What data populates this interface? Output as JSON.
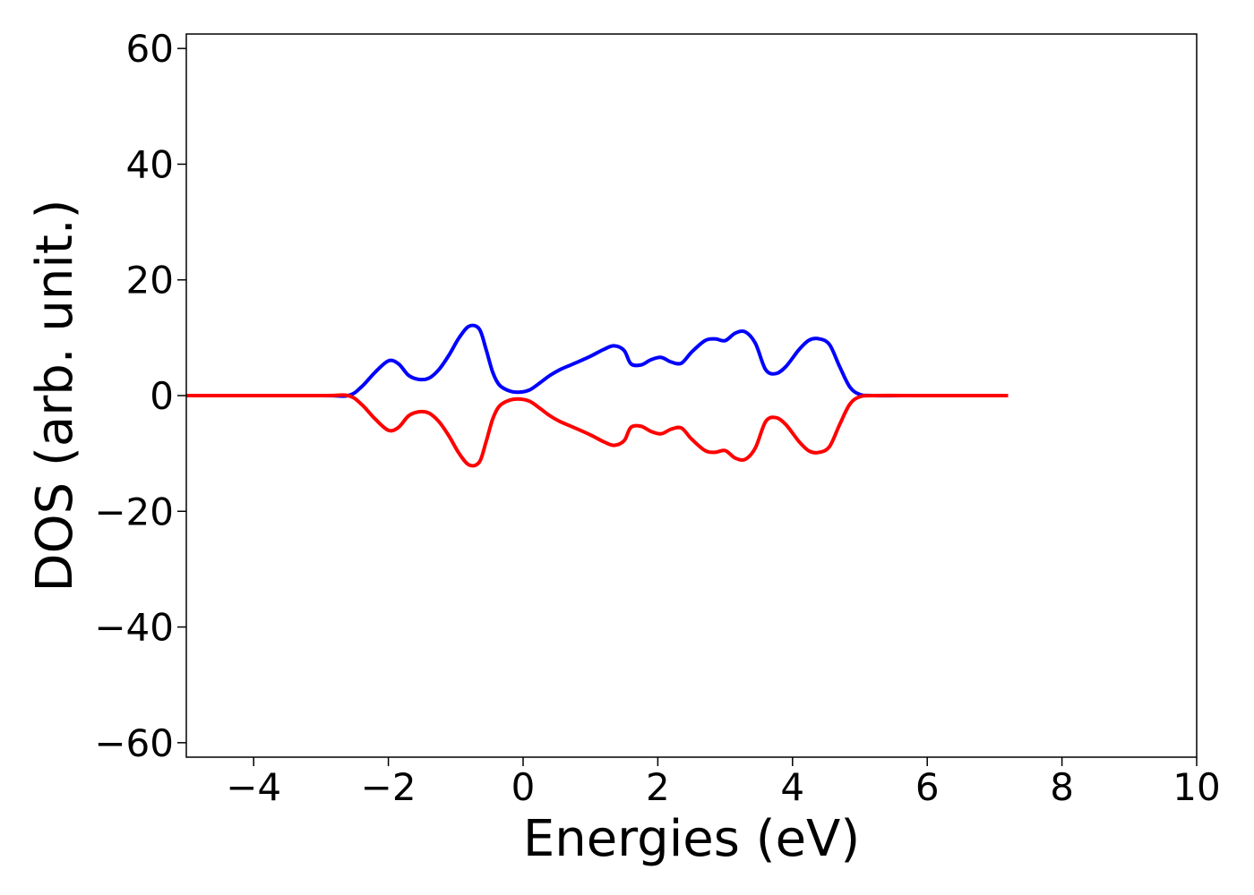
{
  "chart_data": {
    "type": "line",
    "title": "",
    "xlabel": "Energies (eV)",
    "ylabel": "DOS (arb. unit.)",
    "xlim": [
      -5,
      10
    ],
    "ylim": [
      -62.5,
      62.5
    ],
    "xticks": [
      -4,
      -2,
      0,
      2,
      4,
      6,
      8,
      10
    ],
    "xtick_labels": [
      "−4",
      "−2",
      "0",
      "2",
      "4",
      "6",
      "8",
      "10"
    ],
    "yticks": [
      60,
      40,
      20,
      0,
      -20,
      -40,
      -60
    ],
    "ytick_labels": [
      "60",
      "40",
      "20",
      "0",
      "−20",
      "−40",
      "−60"
    ],
    "grid": false,
    "legend": "none",
    "series": [
      {
        "color": "#0000ff",
        "x": [
          -5.0,
          -3.0,
          -2.6,
          -2.4,
          -2.2,
          -2.0,
          -1.85,
          -1.7,
          -1.55,
          -1.4,
          -1.25,
          -1.1,
          -0.95,
          -0.8,
          -0.65,
          -0.55,
          -0.45,
          -0.35,
          -0.2,
          -0.05,
          0.1,
          0.25,
          0.4,
          0.55,
          0.75,
          1.0,
          1.2,
          1.35,
          1.5,
          1.6,
          1.75,
          1.9,
          2.05,
          2.2,
          2.35,
          2.5,
          2.7,
          2.85,
          3.0,
          3.15,
          3.3,
          3.45,
          3.6,
          3.75,
          3.9,
          4.1,
          4.25,
          4.4,
          4.55,
          4.7,
          4.85,
          5.0,
          5.2,
          6.0,
          7.2
        ],
        "y": [
          0,
          0,
          0,
          1.5,
          4.0,
          6.0,
          5.5,
          3.5,
          2.8,
          3.0,
          4.5,
          7.0,
          10.0,
          12.0,
          11.5,
          8.0,
          4.0,
          1.8,
          0.8,
          0.6,
          1.0,
          2.2,
          3.5,
          4.5,
          5.5,
          6.8,
          8.0,
          8.6,
          7.8,
          5.5,
          5.3,
          6.2,
          6.6,
          5.8,
          5.6,
          7.5,
          9.5,
          9.8,
          9.5,
          10.8,
          11.0,
          9.0,
          4.5,
          3.8,
          5.0,
          8.0,
          9.6,
          9.8,
          8.8,
          5.0,
          1.5,
          0.2,
          0,
          0,
          0
        ]
      },
      {
        "color": "#ff0000",
        "x": [
          -5.0,
          -3.0,
          -2.6,
          -2.4,
          -2.2,
          -2.0,
          -1.85,
          -1.7,
          -1.55,
          -1.4,
          -1.25,
          -1.1,
          -0.95,
          -0.8,
          -0.65,
          -0.55,
          -0.45,
          -0.35,
          -0.2,
          -0.05,
          0.1,
          0.25,
          0.4,
          0.55,
          0.75,
          1.0,
          1.2,
          1.35,
          1.5,
          1.6,
          1.75,
          1.9,
          2.05,
          2.2,
          2.35,
          2.5,
          2.7,
          2.85,
          3.0,
          3.15,
          3.3,
          3.45,
          3.6,
          3.75,
          3.9,
          4.1,
          4.25,
          4.4,
          4.55,
          4.7,
          4.85,
          5.0,
          5.2,
          6.0,
          7.2
        ],
        "y": [
          0,
          0,
          0,
          -1.5,
          -4.0,
          -6.0,
          -5.5,
          -3.5,
          -2.8,
          -3.0,
          -4.5,
          -7.0,
          -10.0,
          -12.0,
          -11.5,
          -8.0,
          -4.0,
          -1.8,
          -0.8,
          -0.6,
          -1.0,
          -2.2,
          -3.5,
          -4.5,
          -5.5,
          -6.8,
          -8.0,
          -8.6,
          -7.8,
          -5.5,
          -5.3,
          -6.2,
          -6.6,
          -5.8,
          -5.6,
          -7.5,
          -9.5,
          -9.8,
          -9.5,
          -10.8,
          -11.0,
          -9.0,
          -4.5,
          -3.8,
          -5.0,
          -8.0,
          -9.6,
          -9.8,
          -8.8,
          -5.0,
          -1.5,
          -0.2,
          0,
          0,
          0
        ]
      }
    ]
  }
}
